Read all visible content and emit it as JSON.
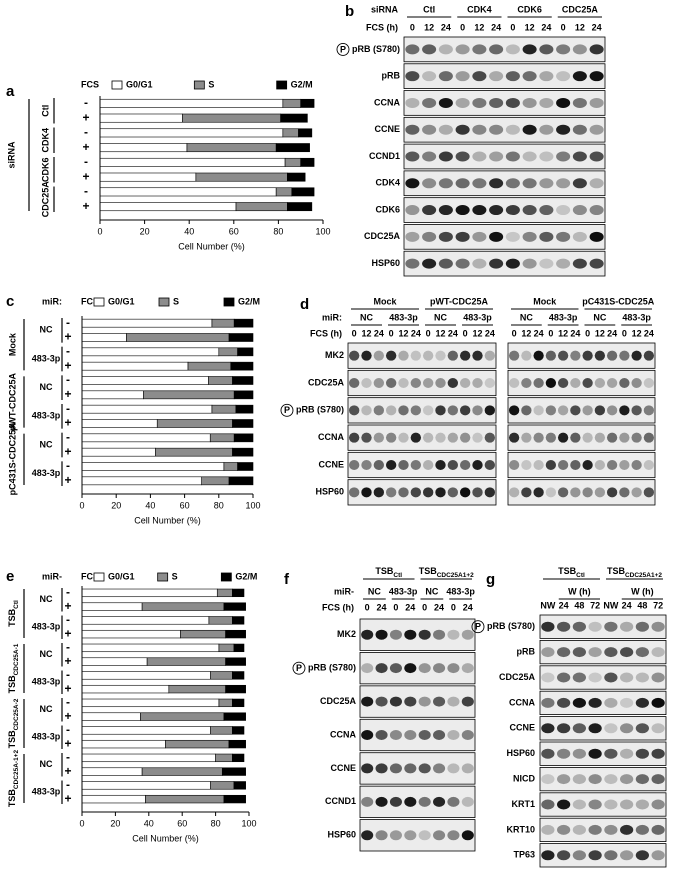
{
  "chart_data": [
    {
      "type": "stacked-bar",
      "panel": "a",
      "header_labels": [
        "FCS"
      ],
      "xlabel": "Cell Number (%)",
      "xlim": [
        0,
        100
      ],
      "xticks": [
        0,
        20,
        40,
        60,
        80,
        100
      ],
      "outer": [
        {
          "text": "siRNA"
        }
      ],
      "inner": [
        {
          "text": "Ctl"
        },
        {
          "text": "CDK4"
        },
        {
          "text": "CDK6"
        },
        {
          "text": "CDC25A"
        }
      ],
      "categories": [
        "-",
        "+",
        "-",
        "+",
        "-",
        "+",
        "-",
        "+"
      ],
      "series": [
        {
          "name": "G0/G1",
          "color": "#ffffff",
          "values": [
            82,
            37,
            82,
            39,
            83,
            43,
            79,
            61
          ]
        },
        {
          "name": "S",
          "color": "#8c8c8c",
          "values": [
            8,
            44,
            7,
            40,
            7,
            41,
            7,
            23
          ]
        },
        {
          "name": "G2/M",
          "color": "#000000",
          "values": [
            6,
            12,
            6,
            15,
            6,
            8,
            10,
            11
          ]
        }
      ]
    },
    {
      "type": "stacked-bar",
      "panel": "c",
      "header_labels": [
        "miR:",
        "FCS"
      ],
      "xlabel": "Cell Number (%)",
      "xlim": [
        0,
        100
      ],
      "xticks": [
        0,
        20,
        40,
        60,
        80,
        100
      ],
      "outer": [
        {
          "text": "Mock"
        },
        {
          "text": "pWT-CDC25A"
        },
        {
          "text": "pC431S-CDC25A"
        }
      ],
      "inner": [
        {
          "text": "NC"
        },
        {
          "text": "483-3p"
        },
        {
          "text": "NC"
        },
        {
          "text": "483-3p"
        },
        {
          "text": "NC"
        },
        {
          "text": "483-3p"
        }
      ],
      "categories": [
        "-",
        "+",
        "-",
        "+",
        "-",
        "+",
        "-",
        "+",
        "-",
        "+",
        "-",
        "+"
      ],
      "series": [
        {
          "name": "G0/G1",
          "color": "#ffffff",
          "values": [
            76,
            26,
            80,
            62,
            74,
            36,
            76,
            44,
            75,
            43,
            83,
            70
          ]
        },
        {
          "name": "S",
          "color": "#8c8c8c",
          "values": [
            13,
            60,
            11,
            25,
            14,
            53,
            14,
            44,
            14,
            45,
            8,
            16
          ]
        },
        {
          "name": "G2/M",
          "color": "#000000",
          "values": [
            11,
            14,
            9,
            13,
            12,
            11,
            10,
            12,
            11,
            12,
            9,
            14
          ]
        }
      ]
    },
    {
      "type": "stacked-bar",
      "panel": "e",
      "header_labels": [
        "miR-",
        "FCS"
      ],
      "xlabel": "Cell Number (%)",
      "xlim": [
        0,
        100
      ],
      "xticks": [
        0,
        20,
        40,
        60,
        80,
        100
      ],
      "outer": [
        {
          "text": "TSB",
          "sub": "Ctl"
        },
        {
          "text": "TSB",
          "sub": "CDC25A-1"
        },
        {
          "text": "TSB",
          "sub": "CDC25A-2"
        },
        {
          "text": "TSB",
          "sub": "CDC25A-1+2"
        }
      ],
      "inner": [
        {
          "text": "NC"
        },
        {
          "text": "483-3p"
        },
        {
          "text": "NC"
        },
        {
          "text": "483-3p"
        },
        {
          "text": "NC"
        },
        {
          "text": "483-3p"
        },
        {
          "text": "NC"
        },
        {
          "text": "483-3p"
        }
      ],
      "categories": [
        "-",
        "+",
        "-",
        "+",
        "-",
        "+",
        "-",
        "+",
        "-",
        "+",
        "-",
        "+",
        "-",
        "+",
        "-",
        "+"
      ],
      "series": [
        {
          "name": "G0/G1",
          "color": "#ffffff",
          "values": [
            81,
            36,
            76,
            59,
            82,
            39,
            77,
            52,
            82,
            35,
            77,
            50,
            80,
            36,
            77,
            38
          ]
        },
        {
          "name": "S",
          "color": "#8c8c8c",
          "values": [
            9,
            49,
            14,
            27,
            9,
            47,
            13,
            34,
            8,
            50,
            13,
            38,
            10,
            48,
            14,
            47
          ]
        },
        {
          "name": "G2/M",
          "color": "#000000",
          "values": [
            7,
            13,
            7,
            12,
            6,
            12,
            7,
            12,
            7,
            13,
            7,
            10,
            7,
            14,
            7,
            13
          ]
        }
      ]
    }
  ],
  "blots": [
    {
      "panel": "b",
      "level_labels": [
        "siRNA",
        "FCS (h)"
      ],
      "blocks": [
        {
          "levels": [
            [
              {
                "text": "Ctl"
              },
              {
                "text": "CDK4"
              },
              {
                "text": "CDK6"
              },
              {
                "text": "CDC25A"
              }
            ],
            [
              {
                "text": "0"
              },
              {
                "text": "12"
              },
              {
                "text": "24"
              },
              {
                "text": "0"
              },
              {
                "text": "12"
              },
              {
                "text": "24"
              },
              {
                "text": "0"
              },
              {
                "text": "12"
              },
              {
                "text": "24"
              },
              {
                "text": "0"
              },
              {
                "text": "12"
              },
              {
                "text": "24"
              }
            ]
          ]
        }
      ],
      "rows": [
        {
          "text": "pRB (S780)",
          "phospho": "P"
        },
        {
          "text": "pRB"
        },
        {
          "text": "CCNA"
        },
        {
          "text": "CCNE"
        },
        {
          "text": "CCND1"
        },
        {
          "text": "CDK4"
        },
        {
          "text": "CDK6"
        },
        {
          "text": "CDC25A"
        },
        {
          "text": "HSP60"
        }
      ]
    },
    {
      "panel": "d",
      "level_labels": [
        null,
        "miR:",
        "FCS (h)"
      ],
      "blocks": [
        {
          "levels": [
            [
              {
                "text": "Mock"
              },
              {
                "text": "pWT-CDC25A"
              }
            ],
            [
              {
                "text": "NC"
              },
              {
                "text": "483-3p"
              },
              {
                "text": "NC"
              },
              {
                "text": "483-3p"
              }
            ],
            [
              {
                "text": "0"
              },
              {
                "text": "12"
              },
              {
                "text": "24"
              },
              {
                "text": "0"
              },
              {
                "text": "12"
              },
              {
                "text": "24"
              },
              {
                "text": "0"
              },
              {
                "text": "12"
              },
              {
                "text": "24"
              },
              {
                "text": "0"
              },
              {
                "text": "12"
              },
              {
                "text": "24"
              }
            ]
          ]
        },
        {
          "levels": [
            [
              {
                "text": "Mock"
              },
              {
                "text": "pC431S-CDC25A"
              }
            ],
            [
              {
                "text": "NC"
              },
              {
                "text": "483-3p"
              },
              {
                "text": "NC"
              },
              {
                "text": "483-3p"
              }
            ],
            [
              {
                "text": "0"
              },
              {
                "text": "12"
              },
              {
                "text": "24"
              },
              {
                "text": "0"
              },
              {
                "text": "12"
              },
              {
                "text": "24"
              },
              {
                "text": "0"
              },
              {
                "text": "12"
              },
              {
                "text": "24"
              },
              {
                "text": "0"
              },
              {
                "text": "12"
              },
              {
                "text": "24"
              }
            ]
          ]
        }
      ],
      "rows": [
        {
          "text": "MK2"
        },
        {
          "text": "CDC25A"
        },
        {
          "text": "pRB (S780)",
          "phospho": "P"
        },
        {
          "text": "CCNA"
        },
        {
          "text": "CCNE"
        },
        {
          "text": "HSP60"
        }
      ]
    },
    {
      "panel": "f",
      "level_labels": [
        null,
        "miR-",
        "FCS (h)"
      ],
      "blocks": [
        {
          "levels": [
            [
              {
                "text": "TSB",
                "sub": "Ctl"
              },
              {
                "text": "TSB",
                "sub": "CDC25A1+2"
              }
            ],
            [
              {
                "text": "NC"
              },
              {
                "text": "483-3p"
              },
              {
                "text": "NC"
              },
              {
                "text": "483-3p"
              }
            ],
            [
              {
                "text": "0"
              },
              {
                "text": "24"
              },
              {
                "text": "0"
              },
              {
                "text": "24"
              },
              {
                "text": "0"
              },
              {
                "text": "24"
              },
              {
                "text": "0"
              },
              {
                "text": "24"
              }
            ]
          ]
        }
      ],
      "rows": [
        {
          "text": "MK2"
        },
        {
          "text": "pRB (S780)",
          "phospho": "P"
        },
        {
          "text": "CDC25A"
        },
        {
          "text": "CCNA"
        },
        {
          "text": "CCNE"
        },
        {
          "text": "CCND1"
        },
        {
          "text": "HSP60"
        }
      ]
    },
    {
      "panel": "g",
      "level_labels": [
        null,
        null,
        null
      ],
      "blocks": [
        {
          "levels": [
            [
              {
                "text": "TSB",
                "sub": "Ctl"
              },
              {
                "text": "TSB",
                "sub": "CDC25A1+2"
              }
            ],
            [
              {
                "text": "W (h)"
              },
              {
                "text": "W (h)"
              }
            ],
            [
              {
                "text": "NW"
              },
              {
                "text": "24"
              },
              {
                "text": "48"
              },
              {
                "text": "72"
              },
              {
                "text": "NW"
              },
              {
                "text": "24"
              },
              {
                "text": "48"
              },
              {
                "text": "72"
              }
            ]
          ]
        }
      ],
      "rows": [
        {
          "text": "pRB (S780)",
          "phospho": "P"
        },
        {
          "text": "pRB"
        },
        {
          "text": "CDC25A"
        },
        {
          "text": "CCNA"
        },
        {
          "text": "CCNE"
        },
        {
          "text": "HSP60"
        },
        {
          "text": "NICD"
        },
        {
          "text": "KRT1"
        },
        {
          "text": "KRT10"
        },
        {
          "text": "TP63"
        }
      ]
    }
  ]
}
